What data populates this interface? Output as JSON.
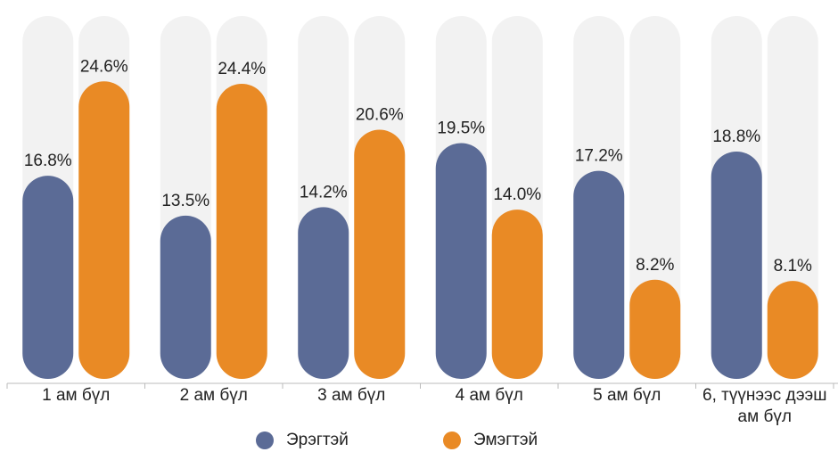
{
  "chart_data": {
    "type": "bar",
    "categories": [
      "1 ам бүл",
      "2 ам бүл",
      "3 ам бүл",
      "4 ам бүл",
      "5 ам бүл",
      "6, түүнээс дээш ам бүл"
    ],
    "series": [
      {
        "name": "Эрэгтэй",
        "color": "#5b6b96",
        "values": [
          16.8,
          13.5,
          14.2,
          19.5,
          17.2,
          18.8
        ],
        "value_labels": [
          "16.8%",
          "13.5%",
          "14.2%",
          "19.5%",
          "17.2%",
          "18.8%"
        ]
      },
      {
        "name": "Эмэгтэй",
        "color": "#e98a25",
        "values": [
          24.6,
          24.4,
          20.6,
          14.0,
          8.2,
          8.1
        ],
        "value_labels": [
          "24.6%",
          "24.4%",
          "20.6%",
          "14.0%",
          "8.2%",
          "8.1%"
        ]
      }
    ],
    "ylim": [
      0,
      30
    ],
    "track_color": "#f2f2f2",
    "legend": "bottom"
  }
}
